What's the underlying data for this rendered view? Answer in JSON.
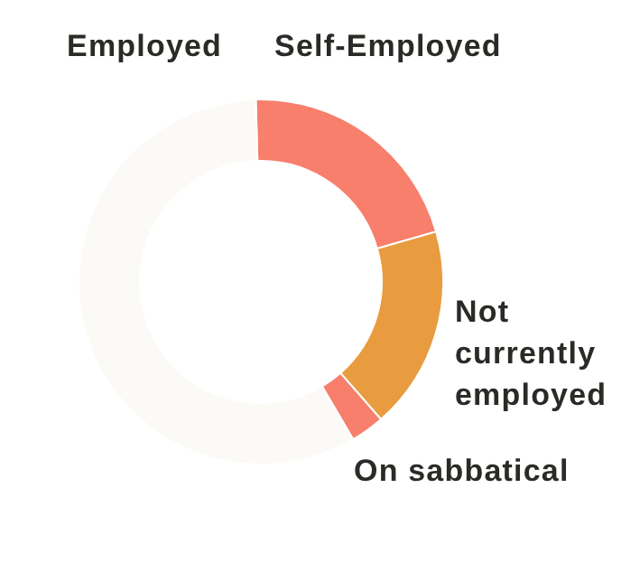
{
  "chart_data": {
    "type": "donut",
    "categories": [
      "Self-Employed",
      "Not currently employed",
      "On sabbatical",
      "Employed"
    ],
    "values": [
      21,
      18,
      3,
      58
    ],
    "colors": [
      "#f77f6c",
      "#e99c3f",
      "#f77f6c",
      "#fbfaf6"
    ]
  }
}
